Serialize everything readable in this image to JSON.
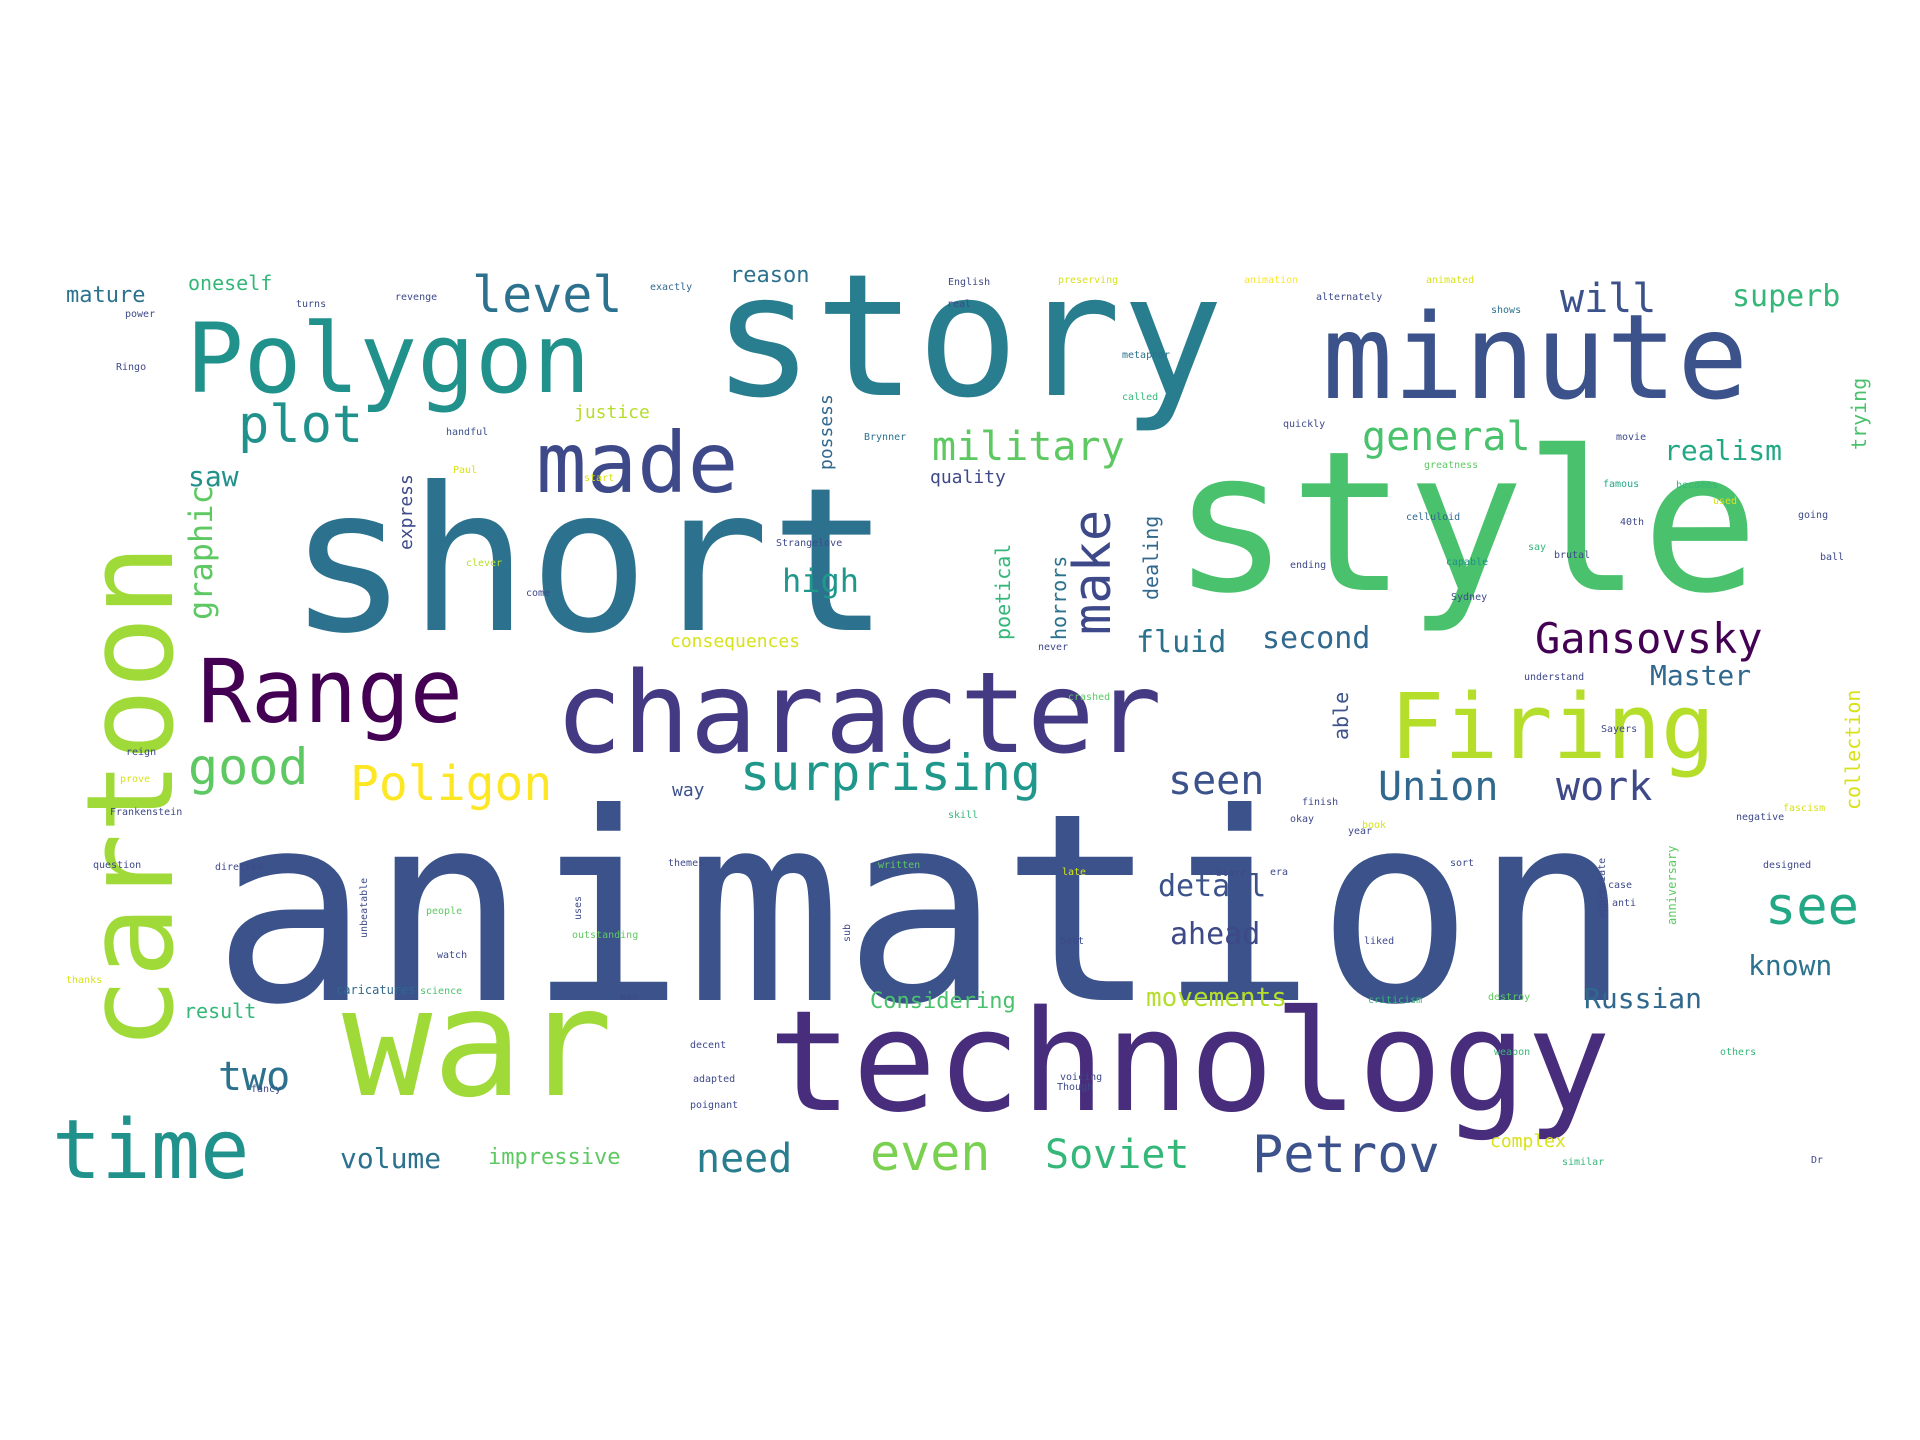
{
  "words": [
    {
      "text": "animation",
      "color": "#3b528b"
    },
    {
      "text": "short",
      "color": "#2c728e"
    },
    {
      "text": "story",
      "color": "#287d8e"
    },
    {
      "text": "style",
      "color": "#4ac16d"
    },
    {
      "text": "war",
      "color": "#a0da39"
    },
    {
      "text": "technology",
      "color": "#472d7b"
    },
    {
      "text": "character",
      "color": "#443983"
    },
    {
      "text": "cartoon",
      "color": "#a0da39"
    },
    {
      "text": "minute",
      "color": "#3b528b"
    },
    {
      "text": "Polygon",
      "color": "#21918c"
    },
    {
      "text": "Firing",
      "color": "#b5de2b"
    },
    {
      "text": "Range",
      "color": "#440154"
    },
    {
      "text": "time",
      "color": "#21918c"
    },
    {
      "text": "made",
      "color": "#3e4989"
    },
    {
      "text": "Petrov",
      "color": "#3b528b"
    },
    {
      "text": "plot",
      "color": "#21918c"
    },
    {
      "text": "level",
      "color": "#2c728e"
    },
    {
      "text": "good",
      "color": "#5ec962"
    },
    {
      "text": "Poligon",
      "color": "#fde725"
    },
    {
      "text": "surprising",
      "color": "#1f988b"
    },
    {
      "text": "military",
      "color": "#5ec962"
    },
    {
      "text": "even",
      "color": "#7ad151"
    },
    {
      "text": "Soviet",
      "color": "#35b779"
    },
    {
      "text": "need",
      "color": "#287d8e"
    },
    {
      "text": "see",
      "color": "#22a884"
    },
    {
      "text": "make",
      "color": "#3e4989"
    },
    {
      "text": "Gansovsky",
      "color": "#440154"
    },
    {
      "text": "general",
      "color": "#4ac16d"
    },
    {
      "text": "will",
      "color": "#3b528b"
    },
    {
      "text": "superb",
      "color": "#35b779"
    },
    {
      "text": "Union",
      "color": "#31688e"
    },
    {
      "text": "work",
      "color": "#3e4989"
    },
    {
      "text": "seen",
      "color": "#3b528b"
    },
    {
      "text": "two",
      "color": "#2c728e"
    },
    {
      "text": "graphic",
      "color": "#5ec962"
    },
    {
      "text": "high",
      "color": "#1f988b"
    },
    {
      "text": "second",
      "color": "#31688e"
    },
    {
      "text": "fluid",
      "color": "#2c728e"
    },
    {
      "text": "detail",
      "color": "#3b528b"
    },
    {
      "text": "ahead",
      "color": "#3e4989"
    },
    {
      "text": "realism",
      "color": "#22a884"
    },
    {
      "text": "Master",
      "color": "#31688e"
    },
    {
      "text": "known",
      "color": "#2c728e"
    },
    {
      "text": "Russian",
      "color": "#31688e"
    },
    {
      "text": "volume",
      "color": "#2c728e"
    },
    {
      "text": "impressive",
      "color": "#5ec962"
    },
    {
      "text": "saw",
      "color": "#21918c"
    },
    {
      "text": "reason",
      "color": "#2c728e"
    },
    {
      "text": "oneself",
      "color": "#35b779"
    },
    {
      "text": "mature",
      "color": "#2c728e"
    },
    {
      "text": "movements",
      "color": "#b5de2b"
    },
    {
      "text": "Considering",
      "color": "#4ac16d"
    },
    {
      "text": "result",
      "color": "#35b779"
    },
    {
      "text": "collection",
      "color": "#d8e219"
    },
    {
      "text": "trying",
      "color": "#4ac16d"
    },
    {
      "text": "able",
      "color": "#3b528b"
    },
    {
      "text": "horrors",
      "color": "#2c728e"
    },
    {
      "text": "dealing",
      "color": "#31688e"
    },
    {
      "text": "poetical",
      "color": "#35b779"
    },
    {
      "text": "possess",
      "color": "#31688e"
    },
    {
      "text": "express",
      "color": "#3e4989"
    },
    {
      "text": "quality",
      "color": "#3e4989"
    },
    {
      "text": "justice",
      "color": "#b5de2b"
    },
    {
      "text": "consequences",
      "color": "#d8e219"
    },
    {
      "text": "complex",
      "color": "#d8e219"
    },
    {
      "text": "way",
      "color": "#3b528b"
    },
    {
      "text": "caricatures",
      "color": "#31688e"
    },
    {
      "text": "English",
      "color": "#3e4989"
    },
    {
      "text": "animation",
      "color": "#fde725"
    },
    {
      "text": "animated",
      "color": "#d8e219"
    },
    {
      "text": "alternately",
      "color": "#3e4989"
    },
    {
      "text": "preserving",
      "color": "#d8e219"
    },
    {
      "text": "exactly",
      "color": "#31688e"
    },
    {
      "text": "shows",
      "color": "#2c728e"
    },
    {
      "text": "metaphor",
      "color": "#2c728e"
    },
    {
      "text": "called",
      "color": "#35b779"
    },
    {
      "text": "Strangelove",
      "color": "#3e4989"
    },
    {
      "text": "handful",
      "color": "#3b528b"
    },
    {
      "text": "quickly",
      "color": "#3e4989"
    },
    {
      "text": "Brynner",
      "color": "#2c728e"
    },
    {
      "text": "greatness",
      "color": "#5ec962"
    },
    {
      "text": "famous",
      "color": "#22a884"
    },
    {
      "text": "becomes",
      "color": "#35b779"
    },
    {
      "text": "celluloid",
      "color": "#31688e"
    },
    {
      "text": "brutal",
      "color": "#3e4989"
    },
    {
      "text": "capable",
      "color": "#21918c"
    },
    {
      "text": "understand",
      "color": "#3e4989"
    },
    {
      "text": "Sayers",
      "color": "#3e4989"
    },
    {
      "text": "Frankenstein",
      "color": "#3e4989"
    },
    {
      "text": "question",
      "color": "#3e4989"
    },
    {
      "text": "directed",
      "color": "#3e4989"
    },
    {
      "text": "people",
      "color": "#5ec962"
    },
    {
      "text": "watch",
      "color": "#3e4989"
    },
    {
      "text": "science",
      "color": "#4ac16d"
    },
    {
      "text": "written",
      "color": "#5ec962"
    },
    {
      "text": "themes",
      "color": "#3e4989"
    },
    {
      "text": "adapted",
      "color": "#3e4989"
    },
    {
      "text": "poignant",
      "color": "#3e4989"
    },
    {
      "text": "decent",
      "color": "#3e4989"
    },
    {
      "text": "negative",
      "color": "#3e4989"
    },
    {
      "text": "designed",
      "color": "#3e4989"
    },
    {
      "text": "anniversary",
      "color": "#5ec962"
    },
    {
      "text": "appreciate",
      "color": "#3e4989"
    },
    {
      "text": "destroy",
      "color": "#5ec962"
    },
    {
      "text": "voicing",
      "color": "#3e4989"
    },
    {
      "text": "Though",
      "color": "#3e4989"
    },
    {
      "text": "similar",
      "color": "#35b779"
    },
    {
      "text": "Dr",
      "color": "#3e4989"
    },
    {
      "text": "weapon",
      "color": "#35b779"
    },
    {
      "text": "fascism",
      "color": "#d8e219"
    },
    {
      "text": "era",
      "color": "#3e4989"
    },
    {
      "text": "Starr",
      "color": "#3e4989"
    },
    {
      "text": "fancy",
      "color": "#3e4989"
    },
    {
      "text": "clever",
      "color": "#b5de2b"
    },
    {
      "text": "turns",
      "color": "#3e4989"
    },
    {
      "text": "revenge",
      "color": "#3e4989"
    },
    {
      "text": "Ringo",
      "color": "#3e4989"
    },
    {
      "text": "power",
      "color": "#3e4989"
    },
    {
      "text": "Paul",
      "color": "#d8e219"
    },
    {
      "text": "say",
      "color": "#35b779"
    },
    {
      "text": "reign",
      "color": "#3e4989"
    },
    {
      "text": "prove",
      "color": "#d8e219"
    },
    {
      "text": "outstanding",
      "color": "#5ec962"
    },
    {
      "text": "thanks",
      "color": "#d8e219"
    },
    {
      "text": "unbeatable",
      "color": "#3e4989"
    },
    {
      "text": "uses",
      "color": "#3e4989"
    },
    {
      "text": "sub",
      "color": "#3e4989"
    },
    {
      "text": "anti",
      "color": "#3e4989"
    },
    {
      "text": "used",
      "color": "#d8e219"
    },
    {
      "text": "going",
      "color": "#3e4989"
    },
    {
      "text": "real",
      "color": "#3e4989"
    },
    {
      "text": "ending",
      "color": "#3e4989"
    },
    {
      "text": "best",
      "color": "#3e4989"
    },
    {
      "text": "liked",
      "color": "#3e4989"
    },
    {
      "text": "criticism",
      "color": "#35b779"
    },
    {
      "text": "okay",
      "color": "#3e4989"
    },
    {
      "text": "finish",
      "color": "#3e4989"
    },
    {
      "text": "book",
      "color": "#d8e219"
    },
    {
      "text": "year",
      "color": "#3e4989"
    },
    {
      "text": "late",
      "color": "#d8e219"
    },
    {
      "text": "come",
      "color": "#3e4989"
    },
    {
      "text": "man",
      "color": "#3e4989"
    },
    {
      "text": "start",
      "color": "#d8e219"
    },
    {
      "text": "movie",
      "color": "#3e4989"
    },
    {
      "text": "40th",
      "color": "#3e4989"
    },
    {
      "text": "Sydney",
      "color": "#3e4989"
    },
    {
      "text": "never",
      "color": "#3e4989"
    },
    {
      "text": "crashed",
      "color": "#5ec962"
    },
    {
      "text": "skill",
      "color": "#35b779"
    },
    {
      "text": "case",
      "color": "#3e4989"
    },
    {
      "text": "others",
      "color": "#35b779"
    },
    {
      "text": "ball",
      "color": "#3e4989"
    },
    {
      "text": "sort",
      "color": "#3e4989"
    }
  ]
}
